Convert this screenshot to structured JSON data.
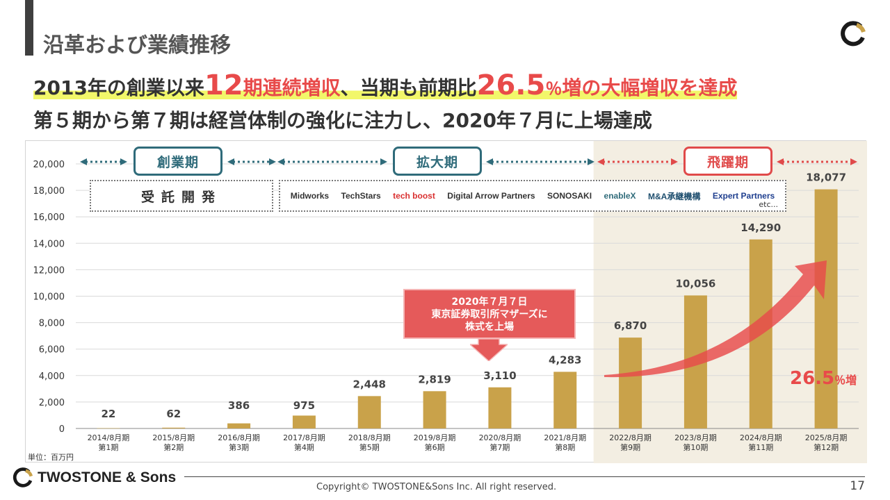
{
  "header": {
    "title": "沿革および業績推移"
  },
  "headline1": {
    "part1": "2013年の創業以来",
    "big1": "12",
    "part2": "期連続増収",
    "part3": "、当期も前期比",
    "big2": "26.5",
    "pct": "％",
    "part4": "増の大幅増収を達成"
  },
  "headline2": "第５期から第７期は経営体制の強化に注力し、2020年７月に上場達成",
  "phases": [
    {
      "label": "創業期"
    },
    {
      "label": "拡大期"
    },
    {
      "label": "飛躍期"
    }
  ],
  "jutaku_label": "受託開発",
  "logos": [
    {
      "name": "midworks",
      "text": "Midworks",
      "color": "#222222"
    },
    {
      "name": "techstars",
      "text": "TechStars",
      "color": "#222222"
    },
    {
      "name": "techboost",
      "text": "tech boost",
      "color": "#222222"
    },
    {
      "name": "digital-arrow",
      "text": "Digital Arrow Partners",
      "color": "#222222"
    },
    {
      "name": "sonosaki",
      "text": "SONOSAKI",
      "color": "#333333"
    },
    {
      "name": "enablex",
      "text": "enableX",
      "color": "#2f6b7a"
    },
    {
      "name": "ma",
      "text": "M&A承継機構",
      "color": "#1f4f6f"
    },
    {
      "name": "ep",
      "text": "Expert Partners",
      "color": "#1f3f8f"
    }
  ],
  "logos_etc": "etc...",
  "callout": {
    "line1": "2020年７月７日",
    "line2": "東京証券取引所マザーズに",
    "line3": "株式を上場"
  },
  "growth": {
    "num": "26.5",
    "suffix": "％増"
  },
  "unit": "単位：百万円",
  "chart_data": {
    "type": "bar",
    "categories": [
      "2014/8月期",
      "2015/8月期",
      "2016/8月期",
      "2017/8月期",
      "2018/8月期",
      "2019/8月期",
      "2020/8月期",
      "2021/8月期",
      "2022/8月期",
      "2023/8月期",
      "2024/8月期",
      "2025/8月期"
    ],
    "sublabels": [
      "第1期",
      "第2期",
      "第3期",
      "第4期",
      "第5期",
      "第6期",
      "第7期",
      "第8期",
      "第9期",
      "第10期",
      "第11期",
      "第12期"
    ],
    "values": [
      22,
      62,
      386,
      975,
      2448,
      2819,
      3110,
      4283,
      6870,
      10056,
      14290,
      18077
    ],
    "value_labels": [
      "22",
      "62",
      "386",
      "975",
      "2,448",
      "2,819",
      "3,110",
      "4,283",
      "6,870",
      "10,056",
      "14,290",
      "18,077"
    ],
    "yticks": [
      0,
      2000,
      4000,
      6000,
      8000,
      10000,
      12000,
      14000,
      16000,
      18000,
      20000
    ],
    "ytick_labels": [
      "0",
      "2,000",
      "4,000",
      "6,000",
      "8,000",
      "10,000",
      "12,000",
      "14,000",
      "16,000",
      "18,000",
      "20,000"
    ],
    "ylim": [
      0,
      20000
    ],
    "bar_color": "#c9a24a",
    "highlight_color": "#f3eee2",
    "highlight_start_index": 8,
    "title": "",
    "xlabel": "",
    "ylabel": ""
  },
  "footer": {
    "brand": "TWOSTONE & Sons",
    "copyright": "Copyright© TWOSTONE&Sons Inc. All right reserved.",
    "page": "17"
  }
}
